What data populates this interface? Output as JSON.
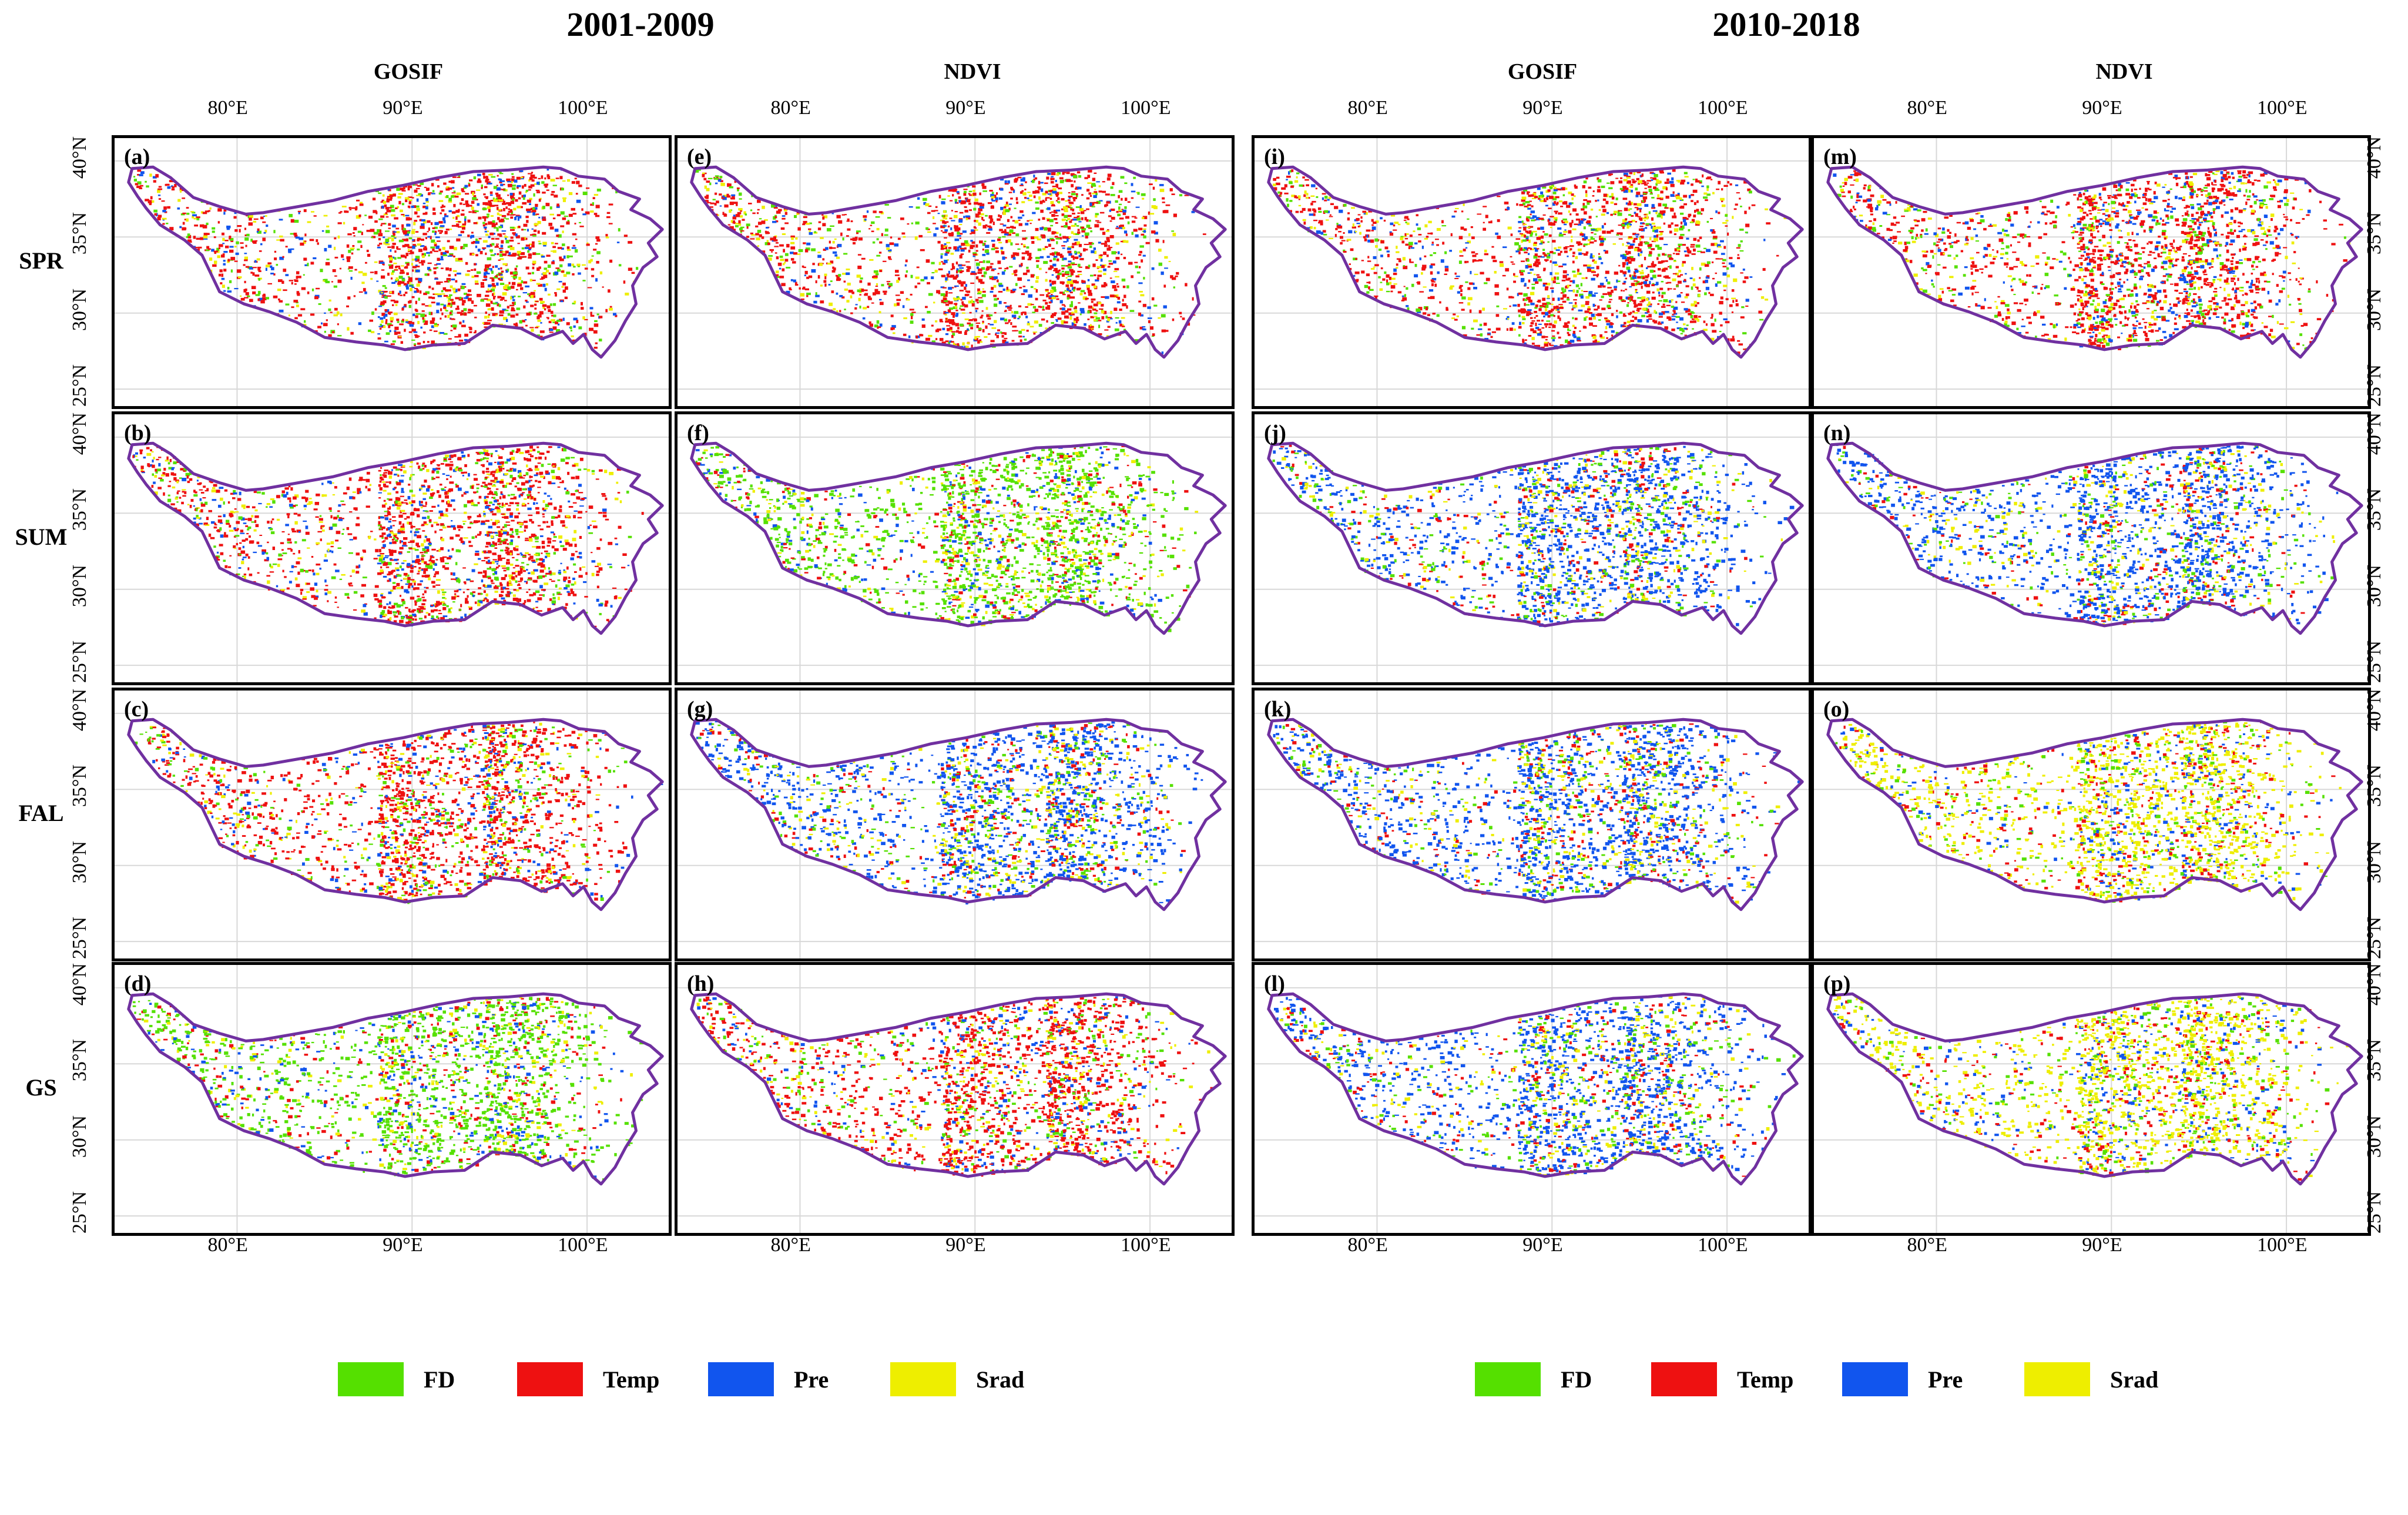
{
  "periods": [
    {
      "label": "2001-2009"
    },
    {
      "label": "2010-2018"
    }
  ],
  "columns": [
    {
      "label": "GOSIF"
    },
    {
      "label": "NDVI"
    },
    {
      "label": "GOSIF"
    },
    {
      "label": "NDVI"
    }
  ],
  "rows": [
    {
      "label": "SPR"
    },
    {
      "label": "SUM"
    },
    {
      "label": "FAL"
    },
    {
      "label": "GS"
    }
  ],
  "panels": [
    {
      "id": "(a)",
      "period": "2001-2009",
      "dataset": "GOSIF",
      "season": "SPR",
      "dominant": "Temp"
    },
    {
      "id": "(b)",
      "period": "2001-2009",
      "dataset": "GOSIF",
      "season": "SUM",
      "dominant": "Temp"
    },
    {
      "id": "(c)",
      "period": "2001-2009",
      "dataset": "GOSIF",
      "season": "FAL",
      "dominant": "Temp"
    },
    {
      "id": "(d)",
      "period": "2001-2009",
      "dataset": "GOSIF",
      "season": "GS",
      "dominant": "FD"
    },
    {
      "id": "(e)",
      "period": "2001-2009",
      "dataset": "NDVI",
      "season": "SPR",
      "dominant": "Temp"
    },
    {
      "id": "(f)",
      "period": "2001-2009",
      "dataset": "NDVI",
      "season": "SUM",
      "dominant": "FD"
    },
    {
      "id": "(g)",
      "period": "2001-2009",
      "dataset": "NDVI",
      "season": "FAL",
      "dominant": "Pre"
    },
    {
      "id": "(h)",
      "period": "2001-2009",
      "dataset": "NDVI",
      "season": "GS",
      "dominant": "Temp"
    },
    {
      "id": "(i)",
      "period": "2010-2018",
      "dataset": "GOSIF",
      "season": "SPR",
      "dominant": "Temp"
    },
    {
      "id": "(j)",
      "period": "2010-2018",
      "dataset": "GOSIF",
      "season": "SUM",
      "dominant": "Pre"
    },
    {
      "id": "(k)",
      "period": "2010-2018",
      "dataset": "GOSIF",
      "season": "FAL",
      "dominant": "Pre"
    },
    {
      "id": "(l)",
      "period": "2010-2018",
      "dataset": "GOSIF",
      "season": "GS",
      "dominant": "Pre"
    },
    {
      "id": "(m)",
      "period": "2010-2018",
      "dataset": "NDVI",
      "season": "SPR",
      "dominant": "Temp"
    },
    {
      "id": "(n)",
      "period": "2010-2018",
      "dataset": "NDVI",
      "season": "SUM",
      "dominant": "Pre"
    },
    {
      "id": "(o)",
      "period": "2010-2018",
      "dataset": "NDVI",
      "season": "FAL",
      "dominant": "Srad"
    },
    {
      "id": "(p)",
      "period": "2010-2018",
      "dataset": "NDVI",
      "season": "GS",
      "dominant": "Srad"
    }
  ],
  "longitude_ticks": [
    "80°E",
    "90°E",
    "100°E"
  ],
  "latitude_ticks": [
    "40°N",
    "35°N",
    "30°N",
    "25°N"
  ],
  "legend": [
    {
      "label": "FD",
      "color": "#55e000"
    },
    {
      "label": "Temp",
      "color": "#ee1111"
    },
    {
      "label": "Pre",
      "color": "#1155ee"
    },
    {
      "label": "Srad",
      "color": "#eeee00"
    }
  ],
  "map": {
    "boundary_color": "#7030a0",
    "region": "Tibetan Plateau",
    "lon_range": [
      73,
      105
    ],
    "lat_range": [
      23.5,
      41.5
    ]
  }
}
